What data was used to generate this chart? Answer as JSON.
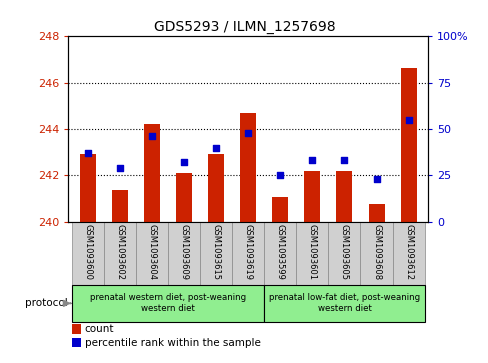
{
  "title": "GDS5293 / ILMN_1257698",
  "samples": [
    "GSM1093600",
    "GSM1093602",
    "GSM1093604",
    "GSM1093609",
    "GSM1093615",
    "GSM1093619",
    "GSM1093599",
    "GSM1093601",
    "GSM1093605",
    "GSM1093608",
    "GSM1093612"
  ],
  "counts": [
    242.9,
    241.35,
    244.2,
    242.1,
    242.9,
    244.7,
    241.05,
    242.2,
    242.2,
    240.75,
    246.65
  ],
  "percentiles": [
    37,
    29,
    46,
    32,
    40,
    48,
    25,
    33,
    33,
    23,
    55
  ],
  "ylim_left": [
    240,
    248
  ],
  "ylim_right": [
    0,
    100
  ],
  "yticks_left": [
    240,
    242,
    244,
    246,
    248
  ],
  "yticks_right": [
    0,
    25,
    50,
    75,
    100
  ],
  "bar_color": "#cc2200",
  "dot_color": "#0000cc",
  "bar_base": 240,
  "protocol_group1_label": "prenatal western diet, post-weaning\nwestern diet",
  "protocol_group2_label": "prenatal low-fat diet, post-weaning\nwestern diet",
  "protocol_group1_indices": [
    0,
    1,
    2,
    3,
    4,
    5
  ],
  "protocol_group2_indices": [
    6,
    7,
    8,
    9,
    10
  ],
  "protocol_label": "protocol",
  "legend_count_label": "count",
  "legend_percentile_label": "percentile rank within the sample",
  "bar_color_left": "#cc2200",
  "dot_color_right": "#0000cc",
  "background_color": "#ffffff",
  "plot_bg_color": "#ffffff",
  "samplename_bg": "#d0d0d0",
  "group_bg": "#90ee90",
  "grid_yticks": [
    242,
    244,
    246
  ]
}
